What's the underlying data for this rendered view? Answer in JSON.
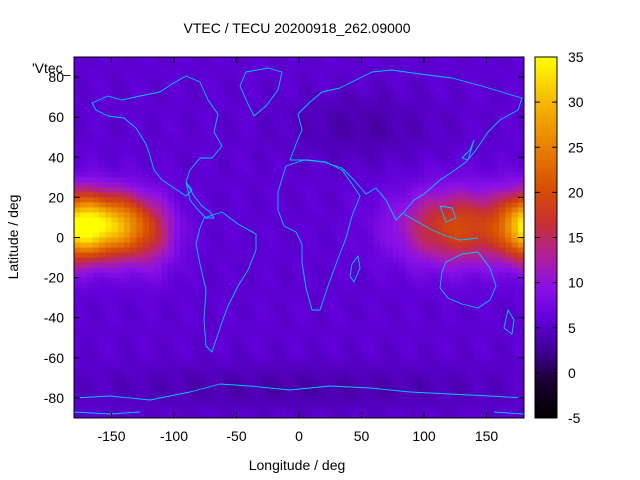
{
  "chart_data": {
    "type": "heatmap",
    "title": "VTEC / TECU 20200918_262.09000",
    "xlabel": "Longitude / deg",
    "ylabel": "Latitude / deg",
    "key_label": "'Vtec_",
    "xlim": [
      -180,
      180
    ],
    "ylim": [
      -90,
      90
    ],
    "xticks": [
      -150,
      -100,
      -50,
      0,
      50,
      100,
      150
    ],
    "yticks": [
      -80,
      -60,
      -40,
      -20,
      0,
      20,
      40,
      60,
      80
    ],
    "colorbar": {
      "min": -5,
      "max": 35,
      "ticks": [
        -5,
        0,
        5,
        10,
        15,
        20,
        25,
        30,
        35
      ],
      "palette": "black-blue-violet-red-orange-yellow"
    },
    "grid": false,
    "background_value": 5.5,
    "enhancements": [
      {
        "lon": -152,
        "lat": 6,
        "sigma_lon": 24,
        "sigma_lat": 11,
        "peak": 24
      },
      {
        "lon": -175,
        "lat": 4,
        "sigma_lon": 14,
        "sigma_lat": 12,
        "peak": 8
      },
      {
        "lon": -118,
        "lat": -1,
        "sigma_lon": 16,
        "sigma_lat": 13,
        "peak": 5
      },
      {
        "lon": 128,
        "lat": 5,
        "sigma_lon": 34,
        "sigma_lat": 13,
        "peak": 14
      },
      {
        "lon": 178,
        "lat": 6,
        "sigma_lon": 14,
        "sigma_lat": 11,
        "peak": 6
      },
      {
        "lon": 50,
        "lat": 55,
        "sigma_lon": 40,
        "sigma_lat": 12,
        "peak": -2
      },
      {
        "lon": 0,
        "lat": -75,
        "sigma_lon": 120,
        "sigma_lat": 8,
        "peak": -2
      }
    ]
  }
}
